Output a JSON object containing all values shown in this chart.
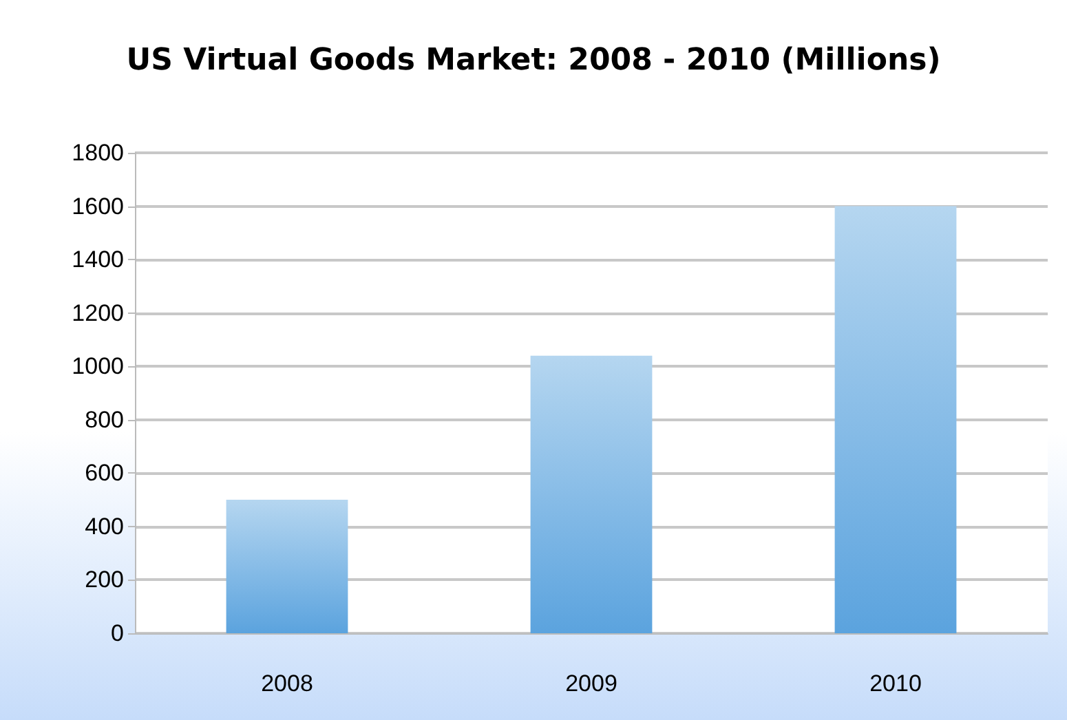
{
  "chart_data": {
    "type": "bar",
    "title": "US Virtual Goods Market: 2008 - 2010 (Millions)",
    "categories": [
      "2008",
      "2009",
      "2010"
    ],
    "values": [
      500,
      1040,
      1600
    ],
    "color": "#5ba3de",
    "ylim": [
      0,
      1800
    ],
    "yticks": [
      0,
      200,
      400,
      600,
      800,
      1000,
      1200,
      1400,
      1600,
      1800
    ],
    "grid": "y"
  }
}
